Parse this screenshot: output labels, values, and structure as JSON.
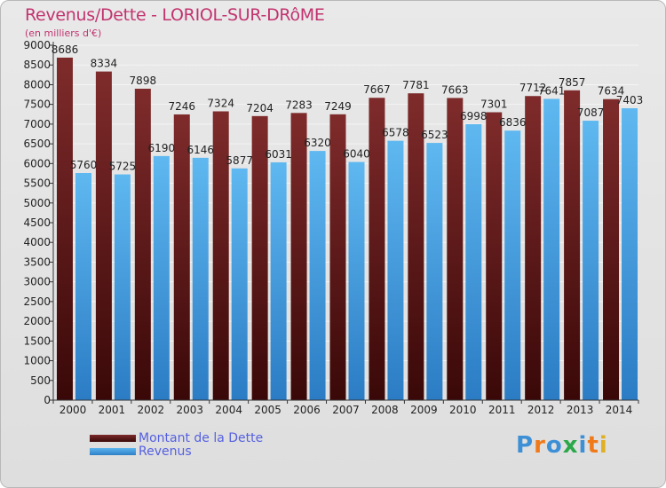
{
  "header": {
    "title": "Revenus/Dette - LORIOL-SUR-DRôME",
    "subtitle": "(en milliers d'€)"
  },
  "chart_data": {
    "type": "bar",
    "categories": [
      "2000",
      "2001",
      "2002",
      "2003",
      "2004",
      "2005",
      "2006",
      "2007",
      "2008",
      "2009",
      "2010",
      "2011",
      "2012",
      "2013",
      "2014"
    ],
    "series": [
      {
        "name": "Montant de la Dette",
        "color": "#7a2424",
        "values": [
          8686,
          8334,
          7898,
          7246,
          7324,
          7204,
          7283,
          7249,
          7667,
          7781,
          7663,
          7301,
          7712,
          7857,
          7634
        ]
      },
      {
        "name": "Revenus",
        "color": "#4aa3e6",
        "values": [
          5760,
          5725,
          6190,
          6146,
          5877,
          6031,
          6320,
          6040,
          6578,
          6523,
          6998,
          6836,
          7641,
          7087,
          7403
        ]
      }
    ],
    "ylim": [
      0,
      9000
    ],
    "yticks": [
      0,
      500,
      1000,
      1500,
      2000,
      2500,
      3000,
      3500,
      4000,
      4500,
      5000,
      5500,
      6000,
      6500,
      7000,
      7500,
      8000,
      8500,
      9000
    ],
    "grid": true,
    "legend": "bottom-left"
  },
  "legend": {
    "debt_label": "Montant de la Dette",
    "revenue_label": "Revenus"
  },
  "logo": {
    "text": "Proxiti",
    "letters": [
      "P",
      "r",
      "o",
      "x",
      "i",
      "t",
      "i"
    ],
    "colors": [
      "#3d8fd6",
      "#f07a1a",
      "#3d8fd6",
      "#2aa84a",
      "#3d8fd6",
      "#f07a1a",
      "#e0b020"
    ]
  }
}
